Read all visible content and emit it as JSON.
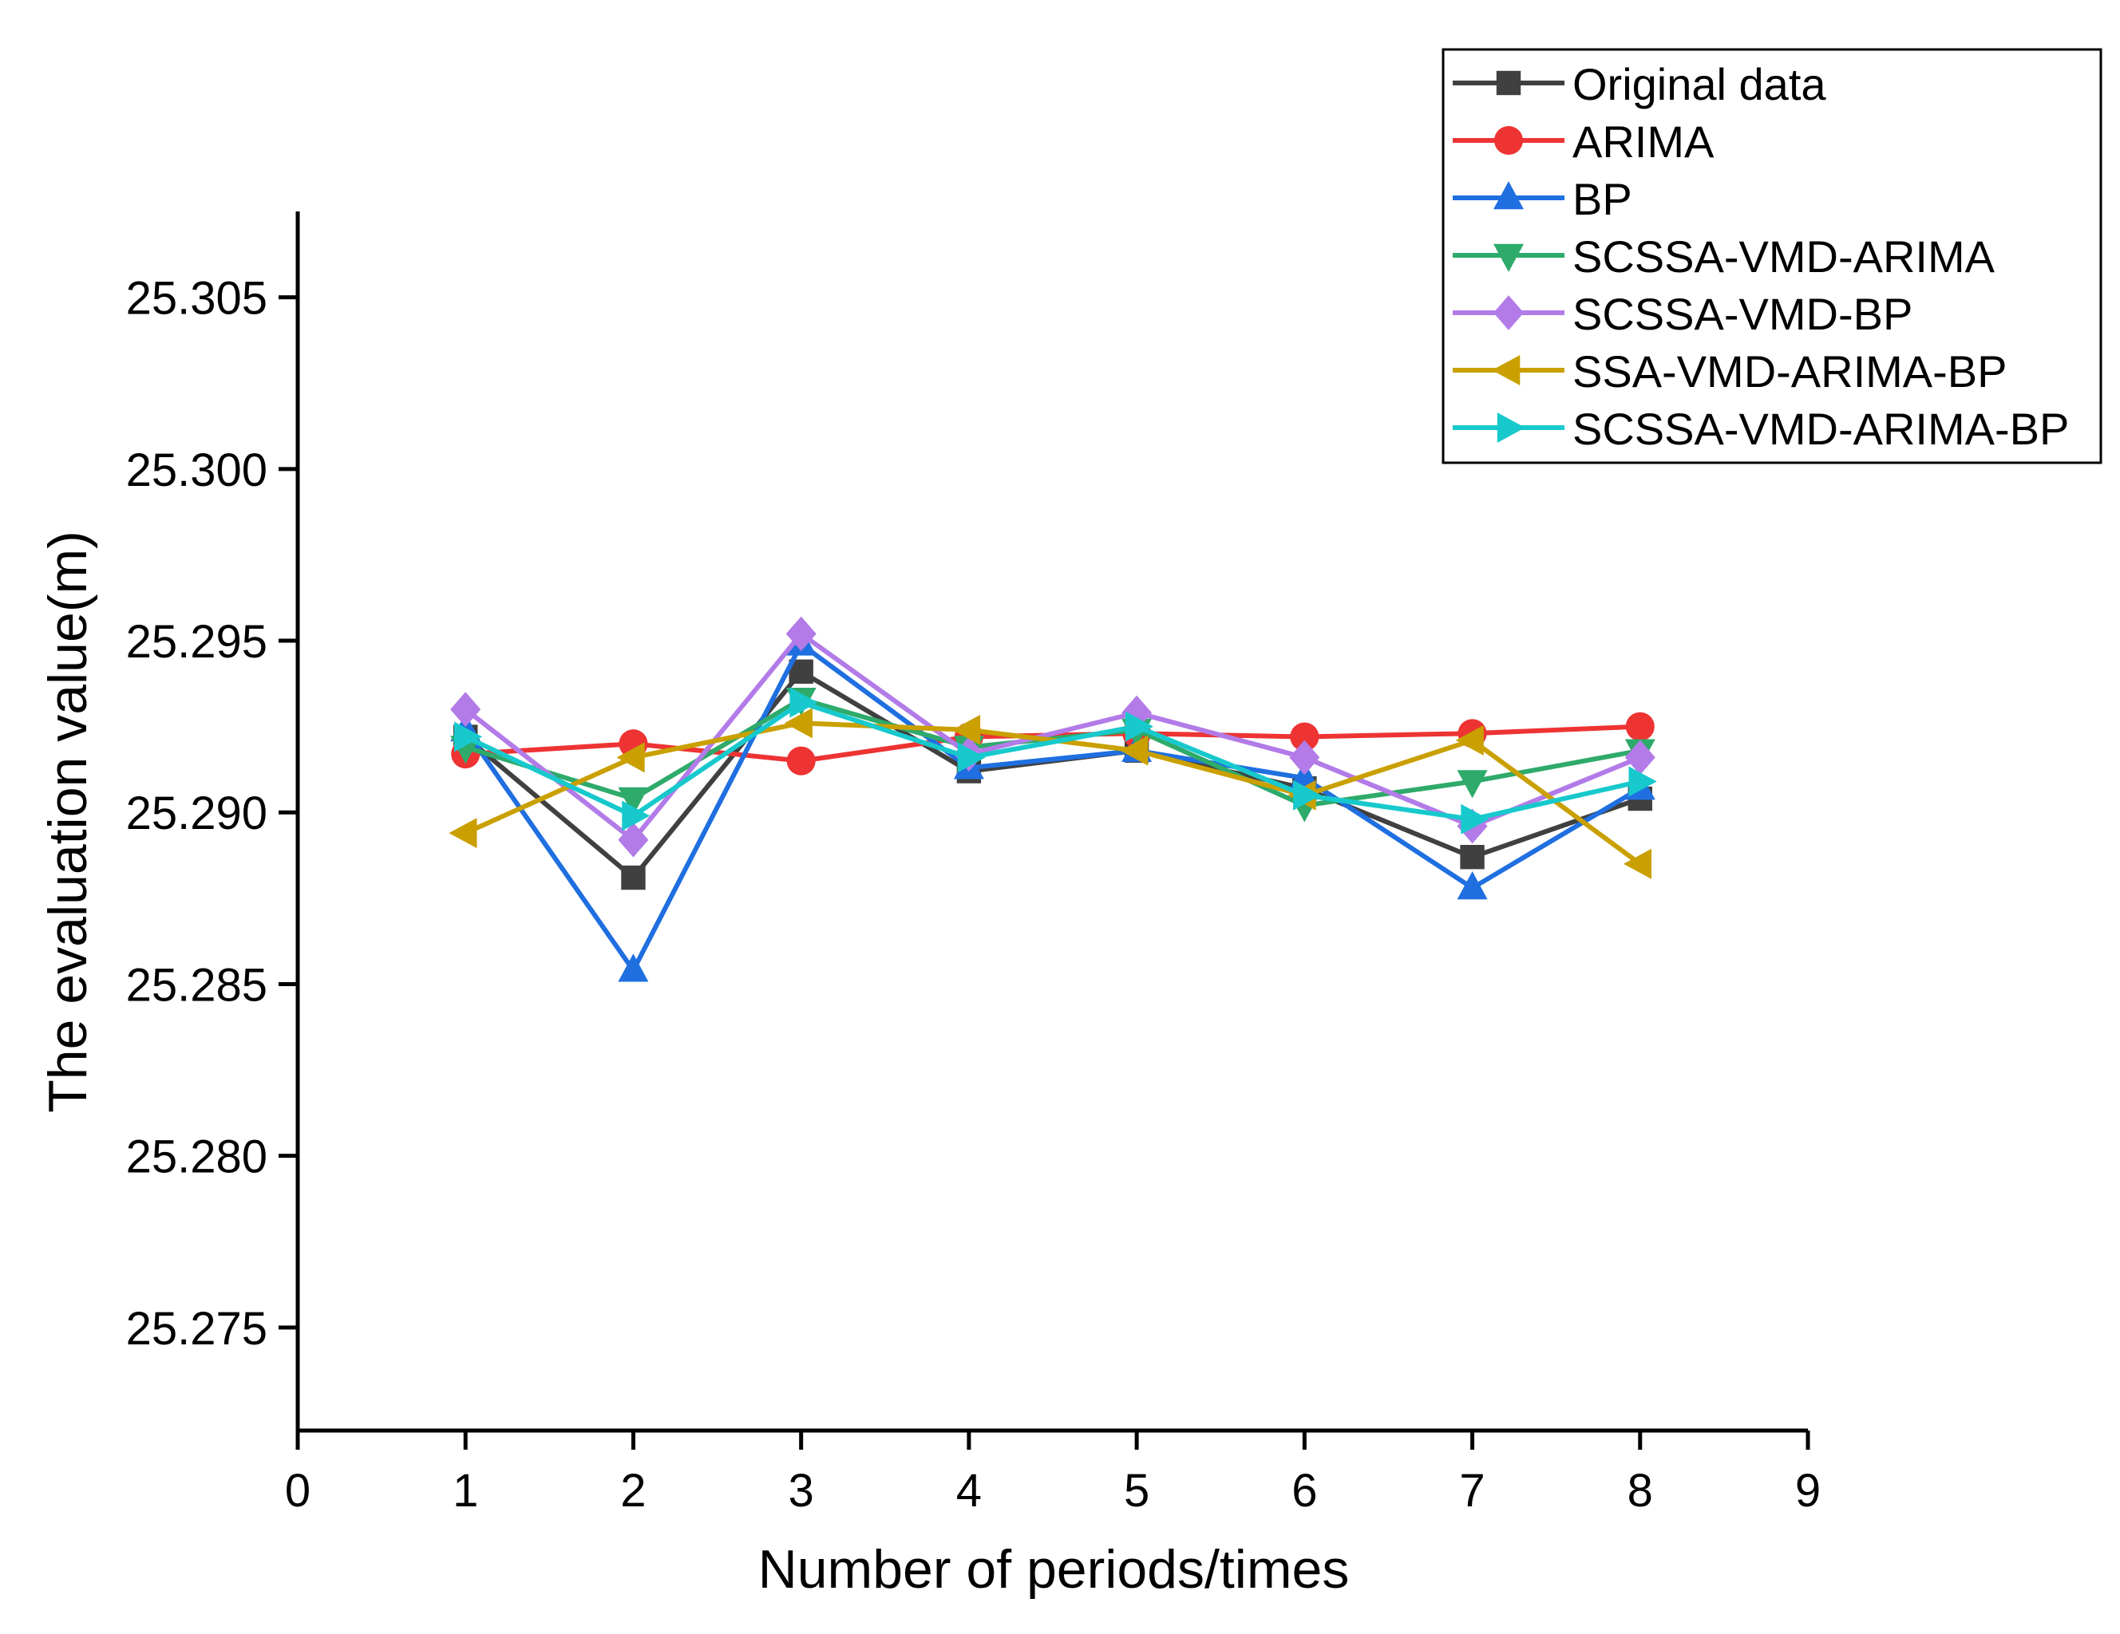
{
  "chart_data": {
    "type": "line",
    "title": "",
    "xlabel": "Number of periods/times",
    "ylabel": "The evaluation value(m)",
    "xlim": [
      0,
      9
    ],
    "ylim": [
      25.272,
      25.3075
    ],
    "x_ticks": [
      "0",
      "1",
      "2",
      "3",
      "4",
      "5",
      "6",
      "7",
      "8",
      "9"
    ],
    "y_ticks": [
      "25.275",
      "25.280",
      "25.285",
      "25.290",
      "25.295",
      "25.300",
      "25.305"
    ],
    "x_tick_values": [
      0,
      1,
      2,
      3,
      4,
      5,
      6,
      7,
      8,
      9
    ],
    "y_tick_values": [
      25.275,
      25.28,
      25.285,
      25.29,
      25.295,
      25.3,
      25.305
    ],
    "grid": false,
    "legend_position": "top-right",
    "x": [
      1,
      2,
      3,
      4,
      5,
      6,
      7,
      8
    ],
    "series": [
      {
        "name": "Original data",
        "color": "#404040",
        "marker": "square",
        "values": [
          25.2922,
          25.2881,
          25.2941,
          25.2912,
          25.2918,
          25.2907,
          25.2887,
          25.2904
        ]
      },
      {
        "name": "ARIMA",
        "color": "#ee3333",
        "marker": "circle",
        "values": [
          25.2917,
          25.292,
          25.2915,
          25.2922,
          25.2923,
          25.2922,
          25.2923,
          25.2925
        ]
      },
      {
        "name": "BP",
        "color": "#1f6fe0",
        "marker": "triangle-up",
        "values": [
          25.2924,
          25.2854,
          25.2949,
          25.2913,
          25.2918,
          25.291,
          25.2878,
          25.2907
        ]
      },
      {
        "name": "SCSSA-VMD-ARIMA",
        "color": "#2eaa6a",
        "marker": "triangle-down",
        "values": [
          25.2919,
          25.2904,
          25.2933,
          25.2919,
          25.2924,
          25.2902,
          25.2909,
          25.2918
        ]
      },
      {
        "name": "SCSSA-VMD-BP",
        "color": "#b27be8",
        "marker": "diamond",
        "values": [
          25.293,
          25.2892,
          25.2952,
          25.2917,
          25.2929,
          25.2916,
          25.2896,
          25.2916
        ]
      },
      {
        "name": "SSA-VMD-ARIMA-BP",
        "color": "#c9a000",
        "marker": "triangle-left",
        "values": [
          25.2894,
          25.2916,
          25.2926,
          25.2924,
          25.2918,
          25.2905,
          25.2921,
          25.2885
        ]
      },
      {
        "name": "SCSSA-VMD-ARIMA-BP",
        "color": "#17c9cc",
        "marker": "triangle-right",
        "values": [
          25.2922,
          25.2899,
          25.2932,
          25.2916,
          25.2925,
          25.2905,
          25.2898,
          25.2909
        ]
      }
    ]
  }
}
